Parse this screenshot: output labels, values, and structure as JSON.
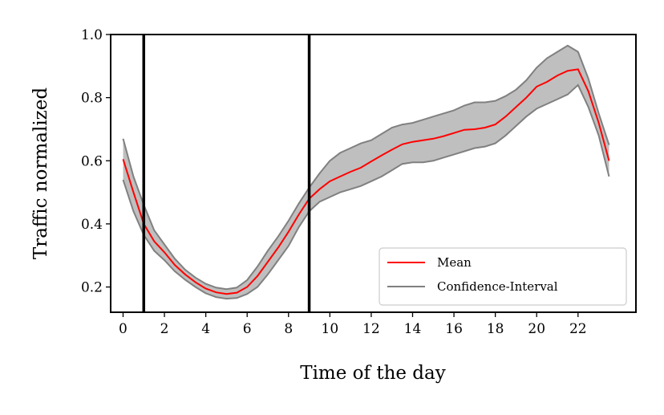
{
  "chart_data": {
    "type": "line",
    "title": "",
    "xlabel": "Time of the day",
    "ylabel": "Traffic normalized",
    "xlim": [
      -0.6,
      24.8
    ],
    "ylim": [
      0.12,
      1.0
    ],
    "xticks": [
      0,
      2,
      4,
      6,
      8,
      10,
      12,
      14,
      16,
      18,
      20,
      22
    ],
    "yticks": [
      0.2,
      0.4,
      0.6,
      0.8,
      1.0
    ],
    "ytick_labels": [
      "0.2",
      "0.4",
      "0.6",
      "0.8",
      "1.0"
    ],
    "vlines": [
      1,
      9
    ],
    "legend": {
      "placement": "lower-right",
      "entries": [
        "Mean",
        "Confidence-Interval"
      ]
    },
    "colors": {
      "mean": "#ff0000",
      "ci": "#808080",
      "ci_fill": "#bfbfbf",
      "vline": "#000000"
    },
    "x": [
      0,
      0.5,
      1,
      1.5,
      2,
      2.5,
      3,
      3.5,
      4,
      4.5,
      5,
      5.5,
      6,
      6.5,
      7,
      7.5,
      8,
      8.5,
      9,
      9.5,
      10,
      10.5,
      11,
      11.5,
      12,
      12.5,
      13,
      13.5,
      14,
      14.5,
      15,
      15.5,
      16,
      16.5,
      17,
      17.5,
      18,
      18.5,
      19,
      19.5,
      20,
      20.5,
      21,
      21.5,
      22,
      22.5,
      23,
      23.5
    ],
    "series": [
      {
        "name": "Mean",
        "values": [
          0.605,
          0.5,
          0.4,
          0.345,
          0.31,
          0.27,
          0.24,
          0.215,
          0.195,
          0.183,
          0.178,
          0.182,
          0.2,
          0.235,
          0.28,
          0.325,
          0.375,
          0.43,
          0.48,
          0.51,
          0.535,
          0.55,
          0.565,
          0.578,
          0.598,
          0.617,
          0.635,
          0.652,
          0.66,
          0.665,
          0.67,
          0.678,
          0.688,
          0.698,
          0.7,
          0.705,
          0.715,
          0.74,
          0.77,
          0.8,
          0.835,
          0.85,
          0.87,
          0.885,
          0.89,
          0.82,
          0.72,
          0.6
        ]
      },
      {
        "name": "CI upper",
        "values": [
          0.67,
          0.55,
          0.46,
          0.38,
          0.335,
          0.29,
          0.255,
          0.23,
          0.21,
          0.198,
          0.193,
          0.198,
          0.222,
          0.265,
          0.315,
          0.36,
          0.41,
          0.465,
          0.515,
          0.56,
          0.6,
          0.625,
          0.64,
          0.655,
          0.665,
          0.685,
          0.705,
          0.715,
          0.72,
          0.73,
          0.74,
          0.75,
          0.76,
          0.775,
          0.785,
          0.785,
          0.79,
          0.805,
          0.825,
          0.855,
          0.895,
          0.925,
          0.945,
          0.965,
          0.945,
          0.86,
          0.75,
          0.65
        ]
      },
      {
        "name": "CI lower",
        "values": [
          0.54,
          0.44,
          0.365,
          0.315,
          0.285,
          0.25,
          0.223,
          0.2,
          0.18,
          0.168,
          0.163,
          0.165,
          0.178,
          0.2,
          0.24,
          0.285,
          0.33,
          0.39,
          0.44,
          0.47,
          0.485,
          0.5,
          0.51,
          0.52,
          0.535,
          0.55,
          0.57,
          0.59,
          0.595,
          0.595,
          0.6,
          0.61,
          0.62,
          0.63,
          0.64,
          0.645,
          0.655,
          0.68,
          0.71,
          0.74,
          0.765,
          0.78,
          0.795,
          0.81,
          0.84,
          0.77,
          0.68,
          0.55
        ]
      }
    ]
  }
}
